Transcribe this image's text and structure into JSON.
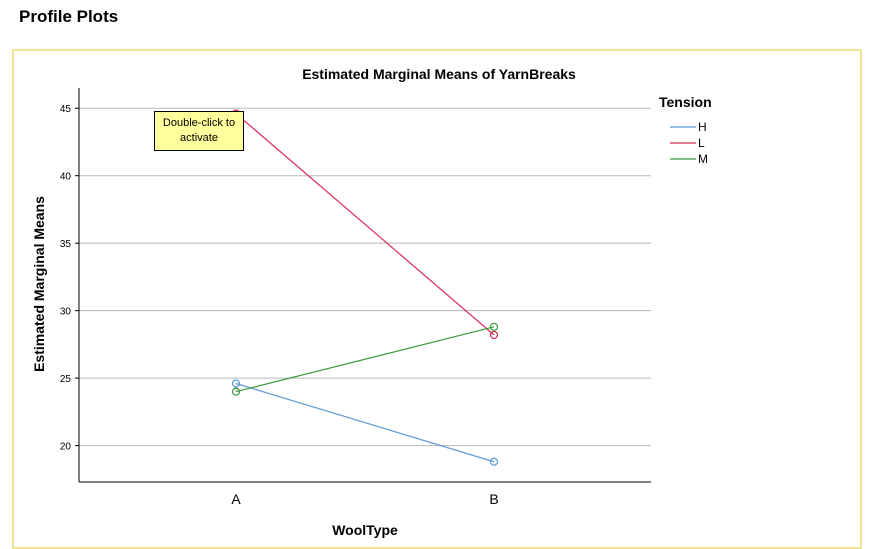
{
  "page": {
    "section_title": "Profile Plots",
    "tooltip": "Double-click to activate"
  },
  "chart_data": {
    "type": "line",
    "title": "Estimated Marginal Means of YarnBreaks",
    "xlabel": "WoolType",
    "ylabel": "Estimated Marginal Means",
    "categories": [
      "A",
      "B"
    ],
    "ylim": [
      17.3,
      46.5
    ],
    "yticks": [
      20,
      25,
      30,
      35,
      40,
      45
    ],
    "grid": true,
    "legend": {
      "title": "Tension",
      "placement": "right"
    },
    "series": [
      {
        "name": "H",
        "values": [
          24.6,
          18.8
        ],
        "color": "#5b9bd5"
      },
      {
        "name": "L",
        "values": [
          44.6,
          28.2
        ],
        "color": "#d62a55"
      },
      {
        "name": "M",
        "values": [
          24.0,
          28.8
        ],
        "color": "#3a9a3a"
      }
    ]
  }
}
